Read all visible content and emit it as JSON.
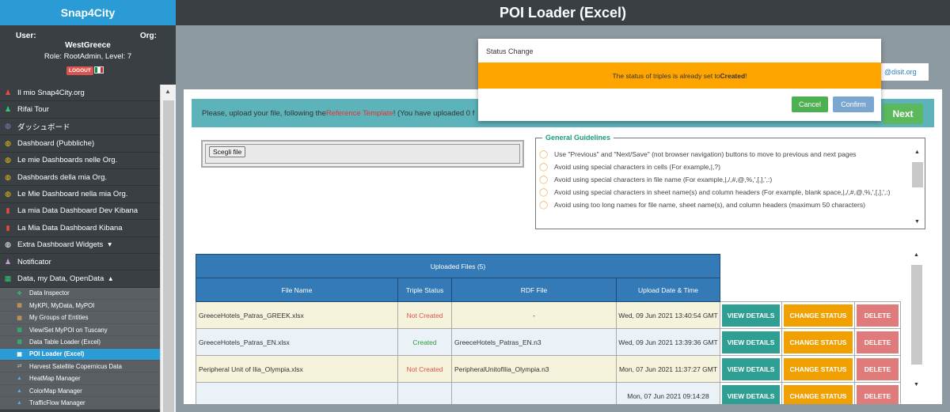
{
  "app": {
    "brand": "Snap4City",
    "page_title": "POI Loader (Excel)"
  },
  "user": {
    "user_label": "User:",
    "org_label": "Org:",
    "name": "WestGreece",
    "role": "Role: RootAdmin, Level: 7",
    "logout_label": "LOGOUT",
    "flag_colors": [
      "#009246",
      "#ffffff",
      "#ce2b37"
    ]
  },
  "sidebar": {
    "items": [
      {
        "label": "Il mio Snap4City.org",
        "icon": "person-icon",
        "glyph": "♟",
        "color": "#e74c3c"
      },
      {
        "label": "Rifai Tour",
        "icon": "bell-icon",
        "glyph": "♟",
        "color": "#2ecc71"
      },
      {
        "label": "ダッシュボード",
        "icon": "tachometer-icon",
        "glyph": "◍",
        "color": "#8e7cc3"
      },
      {
        "label": "Dashboard (Pubbliche)",
        "icon": "tachometer-icon",
        "glyph": "◍",
        "color": "#f1c40f"
      },
      {
        "label": "Le mie Dashboards nelle Org.",
        "icon": "tachometer-icon",
        "glyph": "◍",
        "color": "#f1c40f"
      },
      {
        "label": "Dashboards della mia Org.",
        "icon": "tachometer-icon",
        "glyph": "◍",
        "color": "#f1c40f"
      },
      {
        "label": "Le Mie Dashboard nella mia Org.",
        "icon": "tachometer-icon",
        "glyph": "◍",
        "color": "#f1c40f"
      },
      {
        "label": "La mia Data Dashboard Dev Kibana",
        "icon": "chart-icon",
        "glyph": "▮",
        "color": "#e74c3c"
      },
      {
        "label": "La Mia Data Dashboard Kibana",
        "icon": "chart-icon",
        "glyph": "▮",
        "color": "#e74c3c"
      },
      {
        "label": "Extra Dashboard Widgets",
        "icon": "widgets-icon",
        "glyph": "◍",
        "color": "#ffffff",
        "caret": "▾"
      },
      {
        "label": "Notificator",
        "icon": "bell-icon",
        "glyph": "♟",
        "color": "#c39bd3"
      },
      {
        "label": "Data, my Data, OpenData",
        "icon": "table-icon",
        "glyph": "▦",
        "color": "#2ecc71",
        "caret": "▴"
      }
    ],
    "subitems": [
      {
        "label": "Data Inspector",
        "icon": "crosshair-icon",
        "glyph": "✥",
        "color": "#2ecc71"
      },
      {
        "label": "MyKPI, MyData, MyPOI",
        "icon": "table-icon",
        "glyph": "▦",
        "color": "#f0ad4e"
      },
      {
        "label": "My Groups of Entities",
        "icon": "table-icon",
        "glyph": "▦",
        "color": "#f0ad4e"
      },
      {
        "label": "View/Set MyPOI on Tuscany",
        "icon": "map-icon",
        "glyph": "▦",
        "color": "#2ecc71"
      },
      {
        "label": "Data Table Loader (Excel)",
        "icon": "table-icon",
        "glyph": "▦",
        "color": "#2ecc71"
      },
      {
        "label": "POI Loader (Excel)",
        "icon": "table-icon",
        "glyph": "▦",
        "color": "#2ecc71",
        "active": true
      },
      {
        "label": "Harvest Satellite Copernicus Data",
        "icon": "exchange-icon",
        "glyph": "⇄",
        "color": "#cccccc"
      },
      {
        "label": "HeatMap Manager",
        "icon": "upload-icon",
        "glyph": "▲",
        "color": "#5dade2"
      },
      {
        "label": "ColorMap Manager",
        "icon": "upload-icon",
        "glyph": "▲",
        "color": "#5dade2"
      },
      {
        "label": "TrafficFlow Manager",
        "icon": "upload-icon",
        "glyph": "▲",
        "color": "#5dade2"
      }
    ]
  },
  "upload": {
    "prefix": "Please, upload your file, following the ",
    "link": "Reference Template",
    "suffix": "! (You have uploaded 0 f",
    "next_label": "Next",
    "choose_file_label": "Scegli file"
  },
  "email_fragment": "@disit.org",
  "guidelines": {
    "title": "General Guidelines",
    "items": [
      "Use \"Previous\" and \"Next/Save\" (not browser navigation) buttons to move to previous and next pages",
      "Avoid using special characters in cells (For example,|,?)",
      "Avoid using special characters in file name (For example,|,/,#,@,%,',[,],',:)",
      "Avoid using special characters in sheet name(s) and column headers (For example, blank space,|,/,#,@,%,',[,],',:)",
      "Avoid using too long names for file name, sheet name(s), and column headers (maximum 50 characters)"
    ]
  },
  "table": {
    "caption": "Uploaded Files (5)",
    "headers": [
      "File Name",
      "Triple Status",
      "RDF File",
      "Upload Date & Time"
    ],
    "action_labels": {
      "view": "VIEW DETAILS",
      "change": "CHANGE STATUS",
      "delete": "DELETE"
    },
    "rows": [
      {
        "file": "GreeceHotels_Patras_GREEK.xlsx",
        "status": "Not Created",
        "status_type": "red",
        "rdf": "-",
        "date": "Wed, 09 Jun 2021 13:40:54 GMT"
      },
      {
        "file": "GreeceHotels_Patras_EN.xlsx",
        "status": "Created",
        "status_type": "green",
        "rdf": "GreeceHotels_Patras_EN.n3",
        "date": "Wed, 09 Jun 2021 13:39:36 GMT"
      },
      {
        "file": "Peripheral Unit of Ilia_Olympia.xlsx",
        "status": "Not Created",
        "status_type": "red",
        "rdf": "PeripheralUnitofIlia_Olympia.n3",
        "date": "Mon, 07 Jun 2021 11:37:27 GMT"
      },
      {
        "file": "",
        "status": "",
        "status_type": "red",
        "rdf": "",
        "date": "Mon, 07 Jun 2021 09:14:28"
      }
    ]
  },
  "dialog": {
    "title": "Status Change",
    "message_prefix": "The status of triples is already set to ",
    "message_value": "Created",
    "message_suffix": "!",
    "cancel_label": "Cancel",
    "confirm_label": "Confirm"
  }
}
